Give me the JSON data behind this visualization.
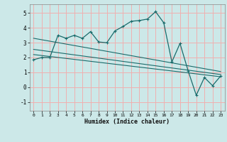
{
  "xlabel": "Humidex (Indice chaleur)",
  "background_color": "#cce8e8",
  "grid_color": "#f0b0b0",
  "line_color": "#1a6b6b",
  "xlim": [
    -0.5,
    23.5
  ],
  "ylim": [
    -1.6,
    5.6
  ],
  "xticks": [
    0,
    1,
    2,
    3,
    4,
    5,
    6,
    7,
    8,
    9,
    10,
    11,
    12,
    13,
    14,
    15,
    16,
    17,
    18,
    19,
    20,
    21,
    22,
    23
  ],
  "yticks": [
    -1,
    0,
    1,
    2,
    3,
    4,
    5
  ],
  "curve1_x": [
    0,
    1,
    2,
    3,
    4,
    5,
    6,
    7,
    8,
    9,
    10,
    11,
    12,
    13,
    14,
    15,
    16,
    17,
    18,
    19,
    20,
    21,
    22,
    23
  ],
  "curve1_y": [
    1.85,
    2.0,
    2.0,
    3.5,
    3.3,
    3.5,
    3.3,
    3.75,
    3.05,
    3.0,
    3.8,
    4.1,
    4.45,
    4.5,
    4.6,
    5.1,
    4.35,
    1.7,
    2.95,
    1.1,
    -0.55,
    0.65,
    0.1,
    0.75
  ],
  "line1_x": [
    0,
    23
  ],
  "line1_y": [
    3.3,
    1.05
  ],
  "line2_x": [
    0,
    23
  ],
  "line2_y": [
    2.55,
    0.85
  ],
  "line3_x": [
    0,
    23
  ],
  "line3_y": [
    2.2,
    0.7
  ]
}
